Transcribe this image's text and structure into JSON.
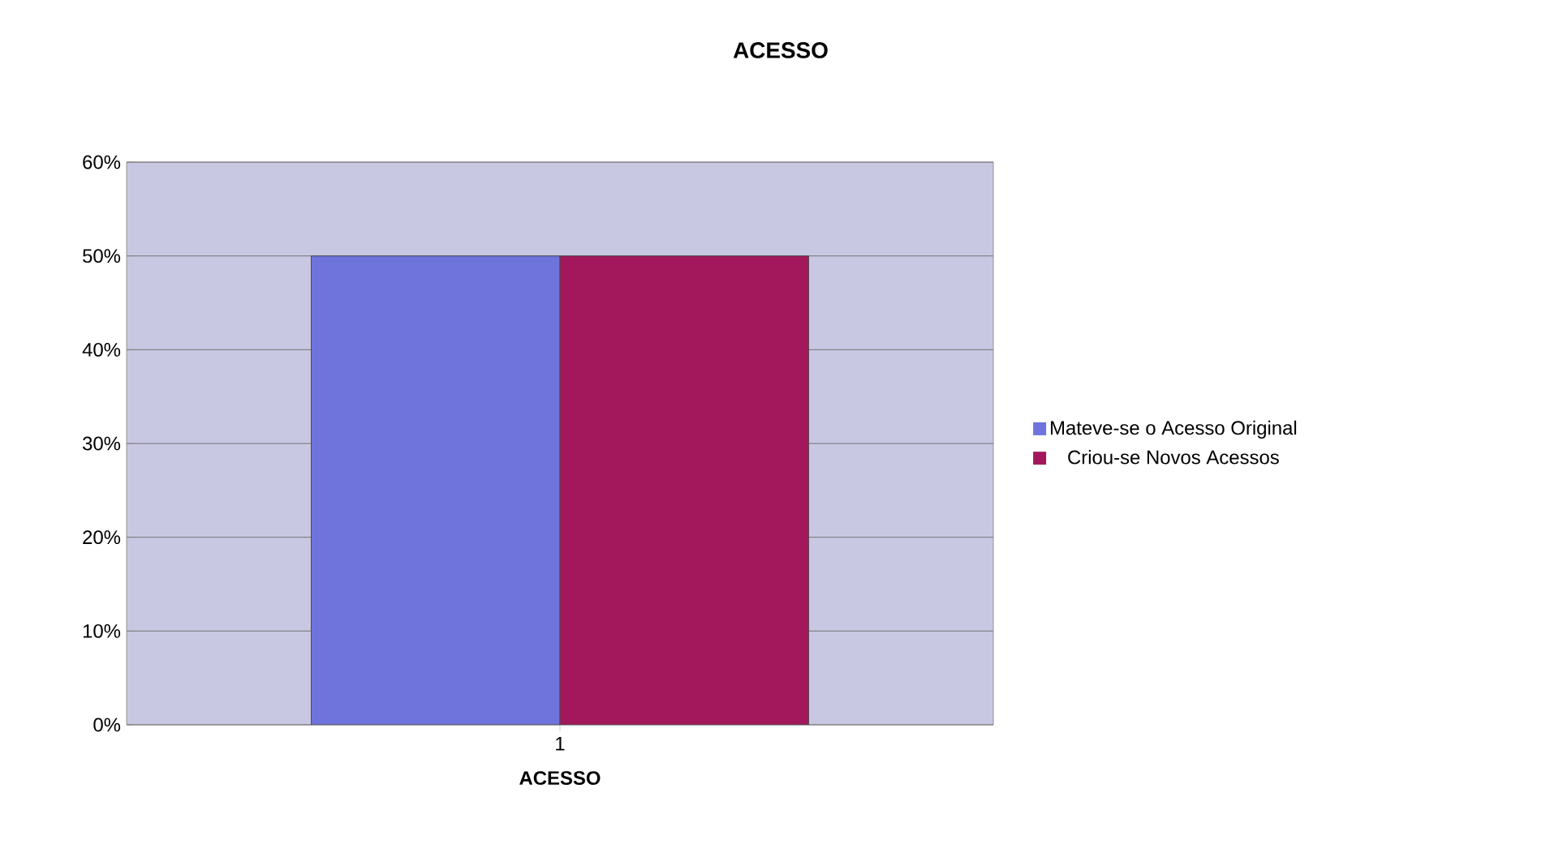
{
  "chart_data": {
    "type": "bar",
    "title": "ACESSO",
    "xlabel": "ACESSO",
    "categories": [
      "1"
    ],
    "series": [
      {
        "name": "Mateve-se o Acesso Original",
        "color": "#6f73dc",
        "values": [
          50
        ]
      },
      {
        "name": "Criou-se Novos Acessos",
        "color": "#a3185c",
        "values": [
          50
        ]
      }
    ],
    "ylim": [
      0,
      60
    ],
    "yticks": [
      {
        "value": 0,
        "label": "0%"
      },
      {
        "value": 10,
        "label": "10%"
      },
      {
        "value": 20,
        "label": "20%"
      },
      {
        "value": 30,
        "label": "30%"
      },
      {
        "value": 40,
        "label": "40%"
      },
      {
        "value": 50,
        "label": "50%"
      },
      {
        "value": 60,
        "label": "60%"
      }
    ],
    "grid": "y",
    "legend": "right"
  }
}
